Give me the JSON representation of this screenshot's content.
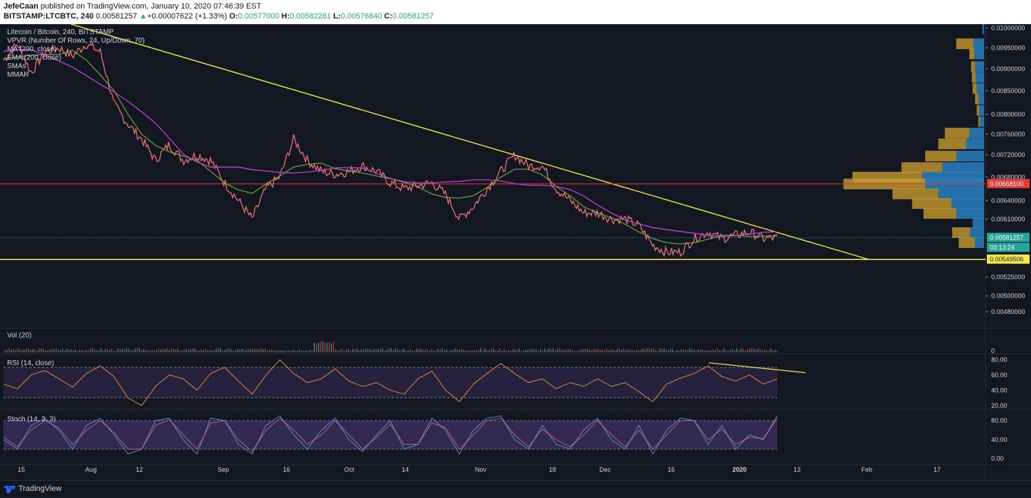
{
  "header": {
    "author": "JefeCaan",
    "published_text": " published on TradingView.com, January 10, 2020 07:46:39 EST",
    "symbol_line": "BITSTAMP:LTCBTC, 240",
    "last": "0.00581257",
    "change_arrow": "▲",
    "change": "+0.00007622 (+1.33%)",
    "o_label": "O:",
    "o_value": "0.00577000",
    "h_label": "H:",
    "h_value": "0.00582281",
    "l_label": "L:",
    "l_value": "0.00576840",
    "c_label": "C:",
    "c_value": "0.00581257"
  },
  "legend": {
    "title": "Litecoin / Bitcoin, 240, BITSTAMP",
    "items": [
      "VPVR (Number Of Rows, 24, Up/Down, 70)",
      "MA (200, close)",
      "EMA (200, close)",
      "SMAs",
      "MMAR"
    ]
  },
  "panes": {
    "volume_label": "Vol (20)",
    "rsi_label": "RSI (14, close)",
    "stoch_label": "Stoch (14, 3, 3)"
  },
  "footer": {
    "brand": "TradingView"
  },
  "colors": {
    "background": "#131722",
    "trendline": "#f5e94b",
    "support": "#f5e94b",
    "resistance_hline": "#e53935",
    "current_price": "#26a69a",
    "ma_magenta": "#c23fd6",
    "vp_up": "#2a7fc0",
    "vp_down": "#c69a2e",
    "rsi_line": "#e0883c",
    "stoch_k": "#4a8ee0",
    "stoch_d": "#e06b7a"
  },
  "chart_data": [
    {
      "type": "line",
      "title": "Litecoin / Bitcoin, 240, BITSTAMP",
      "x_ticks": [
        "15",
        "Aug",
        "12",
        "Sep",
        "16",
        "Oct",
        "14",
        "Nov",
        "18",
        "Dec",
        "16",
        "2020",
        "13",
        "Feb",
        "17"
      ],
      "y_ticks": [
        "0.01000000",
        "0.00950000",
        "0.00900000",
        "0.00850000",
        "0.00800000",
        "0.00760000",
        "0.00720000",
        "0.00680000",
        "0.00640000",
        "0.00610000",
        "0.00525000",
        "0.00500000",
        "0.00480000"
      ],
      "y_scale": "log",
      "ylim": [
        0.0046,
        0.0101
      ],
      "series": [
        {
          "values": [
            0.0092,
            0.0096,
            0.0089,
            0.0094,
            0.0095,
            0.0093,
            0.0096,
            0.0094,
            0.0082,
            0.0078,
            0.0075,
            0.0071,
            0.0074,
            0.0071,
            0.0072,
            0.0071,
            0.0067,
            0.0064,
            0.0061,
            0.0066,
            0.0068,
            0.0075,
            0.0071,
            0.0069,
            0.00685,
            0.0069,
            0.007,
            0.0069,
            0.0067,
            0.0066,
            0.00665,
            0.0067,
            0.0065,
            0.0061,
            0.0063,
            0.0066,
            0.0069,
            0.0072,
            0.007,
            0.007,
            0.0066,
            0.0064,
            0.0062,
            0.0062,
            0.0061,
            0.0061,
            0.006,
            0.0057,
            0.0056,
            0.0056,
            0.0058,
            0.0059,
            0.0058,
            0.00585,
            0.0059,
            0.0058,
            0.00581257
          ]
        }
      ],
      "annotations": {
        "resistance_level": "0.00668100",
        "current_price": "0.00581257",
        "countdown": "03:13:24",
        "support_level": "0.00549506"
      },
      "volume_profile": {
        "rows": [
          {
            "price": 0.00998,
            "up": 0.02,
            "down": 0.0
          },
          {
            "price": 0.0096,
            "up": 0.13,
            "down": 0.21
          },
          {
            "price": 0.00935,
            "up": 0.12,
            "down": 0.06
          },
          {
            "price": 0.00905,
            "up": 0.11,
            "down": 0.05
          },
          {
            "price": 0.0088,
            "up": 0.1,
            "down": 0.05
          },
          {
            "price": 0.00855,
            "up": 0.09,
            "down": 0.05
          },
          {
            "price": 0.00832,
            "up": 0.07,
            "down": 0.04
          },
          {
            "price": 0.00808,
            "up": 0.06,
            "down": 0.03
          },
          {
            "price": 0.00785,
            "up": 0.05,
            "down": 0.02
          },
          {
            "price": 0.00762,
            "up": 0.18,
            "down": 0.3
          },
          {
            "price": 0.00741,
            "up": 0.22,
            "down": 0.34
          },
          {
            "price": 0.00718,
            "up": 0.34,
            "down": 0.38
          },
          {
            "price": 0.00697,
            "up": 0.51,
            "down": 0.5
          },
          {
            "price": 0.0068,
            "up": 0.76,
            "down": 0.85
          },
          {
            "price": 0.00668,
            "up": 0.72,
            "down": 1.0
          },
          {
            "price": 0.00651,
            "up": 0.56,
            "down": 0.56
          },
          {
            "price": 0.00635,
            "up": 0.4,
            "down": 0.48
          },
          {
            "price": 0.00619,
            "up": 0.34,
            "down": 0.4
          },
          {
            "price": 0.00604,
            "up": 0.14,
            "down": 0.0
          },
          {
            "price": 0.00589,
            "up": 0.17,
            "down": 0.22
          },
          {
            "price": 0.00574,
            "up": 0.11,
            "down": 0.2
          }
        ]
      }
    },
    {
      "type": "bar",
      "title": "Vol (20)",
      "y_ticks": [
        "0"
      ]
    },
    {
      "type": "line",
      "title": "RSI (14, close)",
      "y_ticks": [
        "80.00",
        "60.00",
        "40.00",
        "20.00"
      ],
      "ylim": [
        17,
        85
      ],
      "band": [
        30,
        70
      ],
      "series": [
        {
          "values": [
            48,
            42,
            60,
            66,
            55,
            44,
            62,
            72,
            58,
            30,
            20,
            45,
            60,
            55,
            40,
            62,
            70,
            52,
            35,
            60,
            80,
            62,
            50,
            55,
            68,
            52,
            45,
            50,
            40,
            35,
            55,
            65,
            40,
            25,
            48,
            62,
            75,
            62,
            50,
            55,
            42,
            50,
            45,
            55,
            45,
            50,
            38,
            25,
            48,
            56,
            62,
            72,
            58,
            52,
            60,
            48,
            55
          ]
        }
      ]
    },
    {
      "type": "line",
      "title": "Stoch (14, 3, 3)",
      "y_ticks": [
        "80.00",
        "40.00",
        "0.00"
      ],
      "ylim": [
        -5,
        95
      ],
      "band": [
        20,
        80
      ],
      "series": [
        {
          "values": [
            40,
            20,
            70,
            85,
            60,
            20,
            70,
            85,
            50,
            10,
            20,
            80,
            85,
            40,
            10,
            85,
            80,
            30,
            10,
            70,
            90,
            50,
            20,
            60,
            85,
            40,
            15,
            50,
            80,
            20,
            30,
            85,
            60,
            10,
            60,
            85,
            90,
            40,
            20,
            70,
            30,
            20,
            60,
            85,
            40,
            20,
            70,
            10,
            60,
            85,
            80,
            30,
            70,
            20,
            50,
            40,
            90
          ]
        },
        {
          "values": [
            45,
            25,
            60,
            80,
            65,
            30,
            60,
            80,
            55,
            20,
            20,
            70,
            82,
            50,
            20,
            75,
            80,
            40,
            15,
            60,
            85,
            60,
            30,
            50,
            80,
            50,
            20,
            45,
            72,
            30,
            30,
            75,
            65,
            20,
            50,
            80,
            85,
            50,
            25,
            62,
            40,
            25,
            50,
            80,
            50,
            25,
            60,
            20,
            50,
            80,
            80,
            40,
            62,
            30,
            45,
            42,
            85
          ]
        }
      ]
    }
  ]
}
